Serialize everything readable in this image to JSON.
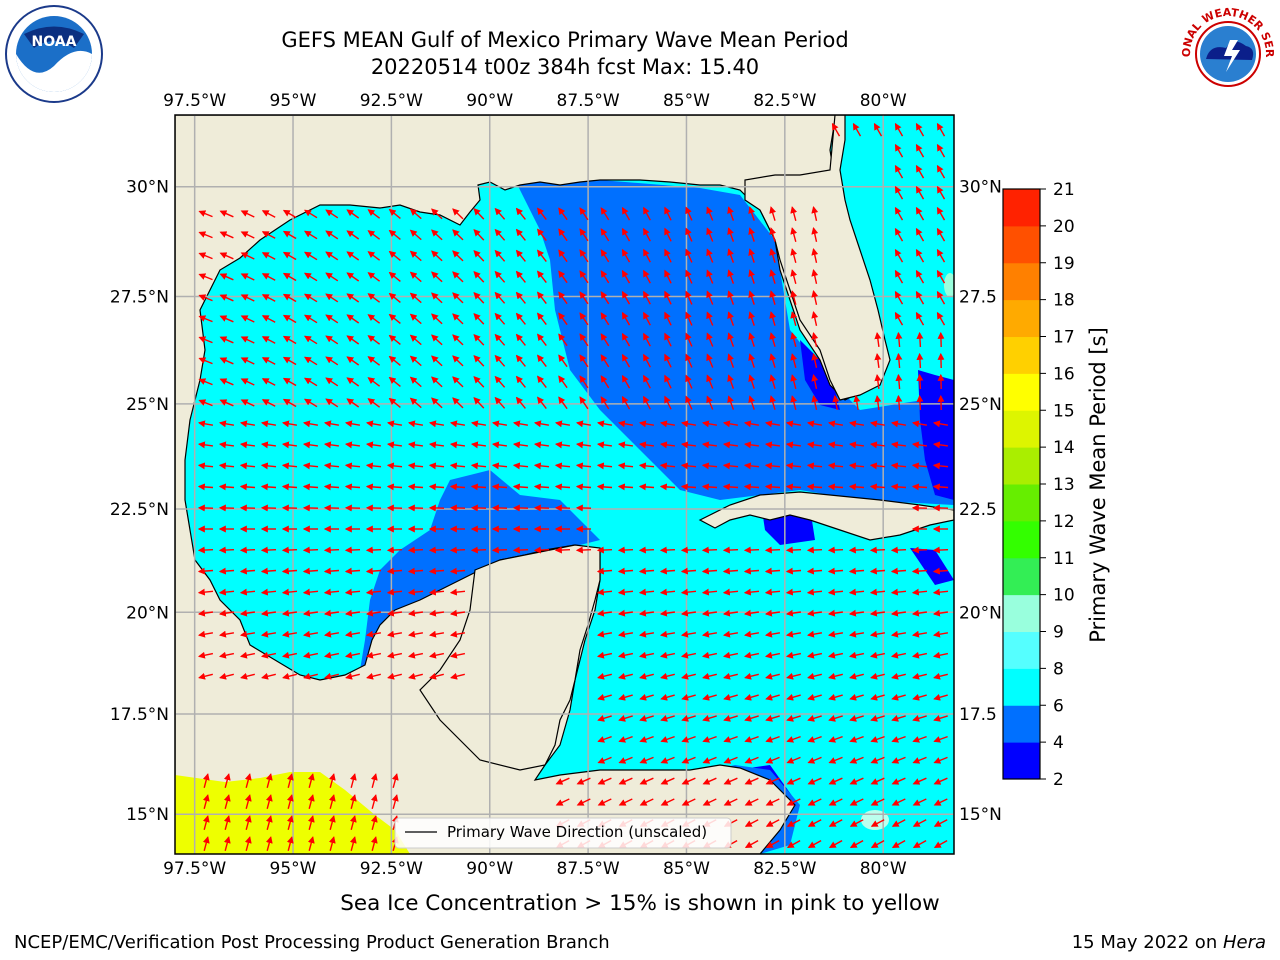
{
  "header": {
    "title_line1": "GEFS MEAN Gulf of Mexico Primary Wave Mean Period",
    "title_line2": "20220514 t00z 384h fcst   Max: 15.40"
  },
  "logos": {
    "left": {
      "icon": "noaa-logo",
      "text": "NOAA"
    },
    "right": {
      "icon": "nws-logo",
      "text": "NATIONAL WEATHER SERVICE"
    }
  },
  "map": {
    "lon_labels": [
      "97.5°W",
      "95°W",
      "92.5°W",
      "90°W",
      "87.5°W",
      "85°W",
      "82.5°W",
      "80°W"
    ],
    "lat_labels": [
      "30°N",
      "27.5°N",
      "25°N",
      "22.5°N",
      "20°N",
      "17.5°N",
      "15°N"
    ],
    "lat_labels_right": [
      "30°N",
      "27.5",
      "25°N",
      "22.5",
      "20°N",
      "17.5",
      "15°N"
    ],
    "extent": {
      "lon_min": -98,
      "lon_max": -78.2,
      "lat_min": 14,
      "lat_max": 31.6
    },
    "legend_label": "Primary Wave Direction (unscaled)",
    "arrow_color": "#ff0000",
    "land_color": "#efecd9",
    "grid_color": "#b0b0b0"
  },
  "colorbar": {
    "label": "Primary Wave Mean Period [s]",
    "ticks": [
      "2",
      "4",
      "6",
      "8",
      "9",
      "10",
      "11",
      "12",
      "13",
      "14",
      "15",
      "16",
      "17",
      "18",
      "19",
      "20",
      "21"
    ],
    "colors": [
      "#0000ff",
      "#0070ff",
      "#00ffff",
      "#55ffff",
      "#99ffdd",
      "#33ee55",
      "#33ff00",
      "#66ee00",
      "#aaee00",
      "#ddf500",
      "#ffff00",
      "#ffd000",
      "#ffaa00",
      "#ff8000",
      "#ff5000",
      "#ff2200"
    ]
  },
  "notes": {
    "sea_ice": "Sea Ice Concentration > 15% is shown in pink to yellow"
  },
  "footer": {
    "left": "NCEP/EMC/Verification Post Processing Product Generation Branch",
    "right_prefix": "15 May 2022 on ",
    "right_host": "Hera"
  }
}
